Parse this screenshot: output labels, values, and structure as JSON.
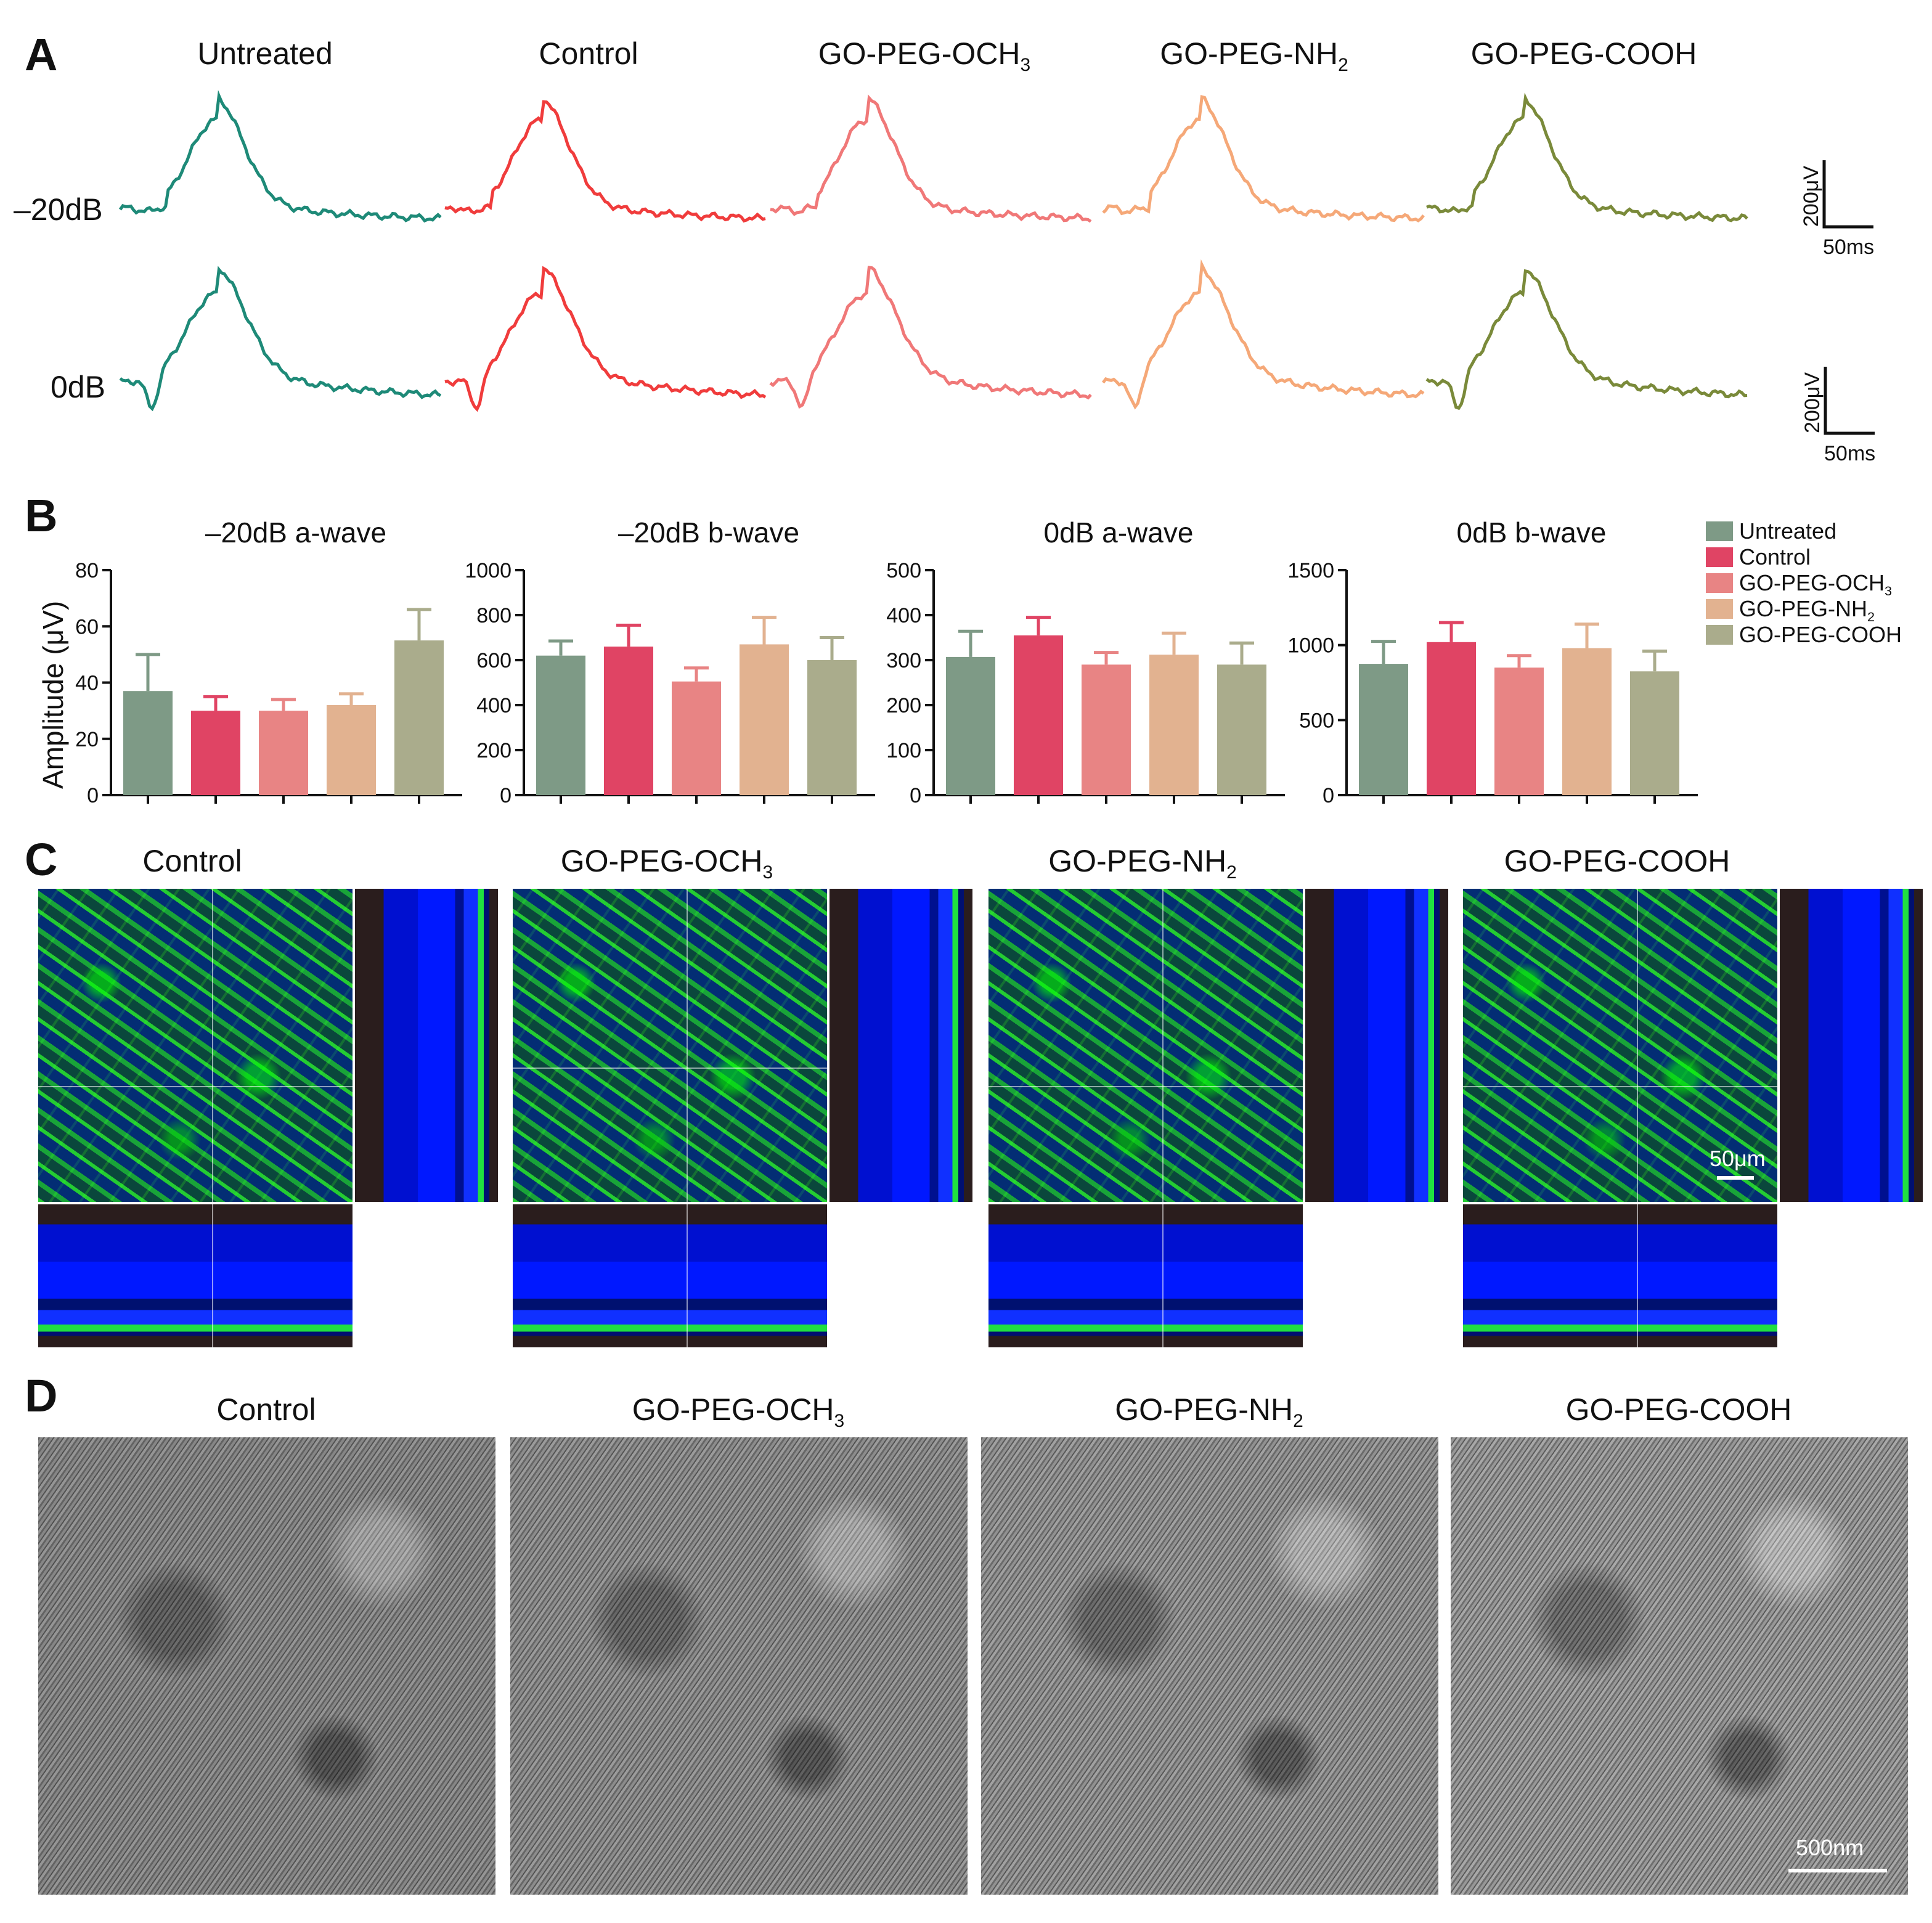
{
  "panels": {
    "A": {
      "letter": "A",
      "groups": [
        {
          "name": "Untreated",
          "base": "Untreated",
          "sub": "",
          "color": "#1e8a78"
        },
        {
          "name": "Control",
          "base": "Control",
          "sub": "",
          "color": "#f03c3c"
        },
        {
          "name": "GO-PEG-OCH3",
          "base": "GO-PEG-OCH",
          "sub": "3",
          "color": "#f07878"
        },
        {
          "name": "GO-PEG-NH2",
          "base": "GO-PEG-NH",
          "sub": "2",
          "color": "#f5a878"
        },
        {
          "name": "GO-PEG-COOH",
          "base": "GO-PEG-COOH",
          "sub": "",
          "color": "#7a8a3a"
        }
      ],
      "rows": [
        "–20dB",
        "0dB"
      ],
      "scale_bars": [
        {
          "y_label": "200μV",
          "x_label": "50ms"
        },
        {
          "y_label": "200μV",
          "x_label": "50ms"
        }
      ]
    },
    "B": {
      "letter": "B",
      "ylabel": "Amplitude (μV)"
    },
    "C": {
      "letter": "C",
      "titles": [
        {
          "base": "Control",
          "sub": ""
        },
        {
          "base": "GO-PEG-OCH",
          "sub": "3"
        },
        {
          "base": "GO-PEG-NH",
          "sub": "2"
        },
        {
          "base": "GO-PEG-COOH",
          "sub": ""
        }
      ],
      "scale_label": "50μm"
    },
    "D": {
      "letter": "D",
      "titles": [
        {
          "base": "Control",
          "sub": ""
        },
        {
          "base": "GO-PEG-OCH",
          "sub": "3"
        },
        {
          "base": "GO-PEG-NH",
          "sub": "2"
        },
        {
          "base": "GO-PEG-COOH",
          "sub": ""
        }
      ],
      "scale_label": "500nm"
    }
  },
  "legend": [
    {
      "base": "Untreated",
      "sub": "",
      "color": "#7e9a86"
    },
    {
      "base": "Control",
      "sub": "",
      "color": "#e04464"
    },
    {
      "base": "GO-PEG-OCH",
      "sub": "3",
      "color": "#e88484"
    },
    {
      "base": "GO-PEG-NH",
      "sub": "2",
      "color": "#e2b290"
    },
    {
      "base": "GO-PEG-COOH",
      "sub": "",
      "color": "#aaac8c"
    }
  ],
  "chart_data": [
    {
      "type": "bar",
      "title": "–20dB a-wave",
      "categories": [
        "Untreated",
        "Control",
        "GO-PEG-OCH3",
        "GO-PEG-NH2",
        "GO-PEG-COOH"
      ],
      "values": [
        37,
        30,
        30,
        32,
        55
      ],
      "errors": [
        13,
        5,
        4,
        4,
        11
      ],
      "ylim": [
        0,
        80
      ],
      "yticks": [
        0,
        20,
        40,
        60,
        80
      ],
      "ylabel": "Amplitude (μV)"
    },
    {
      "type": "bar",
      "title": "–20dB b-wave",
      "categories": [
        "Untreated",
        "Control",
        "GO-PEG-OCH3",
        "GO-PEG-NH2",
        "GO-PEG-COOH"
      ],
      "values": [
        620,
        660,
        505,
        670,
        600
      ],
      "errors": [
        65,
        95,
        60,
        120,
        100
      ],
      "ylim": [
        0,
        1000
      ],
      "yticks": [
        0,
        200,
        400,
        600,
        800,
        1000
      ],
      "ylabel": ""
    },
    {
      "type": "bar",
      "title": "0dB a-wave",
      "categories": [
        "Untreated",
        "Control",
        "GO-PEG-OCH3",
        "GO-PEG-NH2",
        "GO-PEG-COOH"
      ],
      "values": [
        307,
        355,
        290,
        312,
        290
      ],
      "errors": [
        57,
        40,
        27,
        48,
        48
      ],
      "ylim": [
        0,
        500
      ],
      "yticks": [
        0,
        100,
        200,
        300,
        400,
        500
      ],
      "ylabel": ""
    },
    {
      "type": "bar",
      "title": "0dB b-wave",
      "categories": [
        "Untreated",
        "Control",
        "GO-PEG-OCH3",
        "GO-PEG-NH2",
        "GO-PEG-COOH"
      ],
      "values": [
        875,
        1020,
        850,
        980,
        825
      ],
      "errors": [
        150,
        130,
        80,
        160,
        135
      ],
      "ylim": [
        0,
        1500
      ],
      "yticks": [
        0,
        500,
        1000,
        1500
      ],
      "ylabel": ""
    }
  ]
}
